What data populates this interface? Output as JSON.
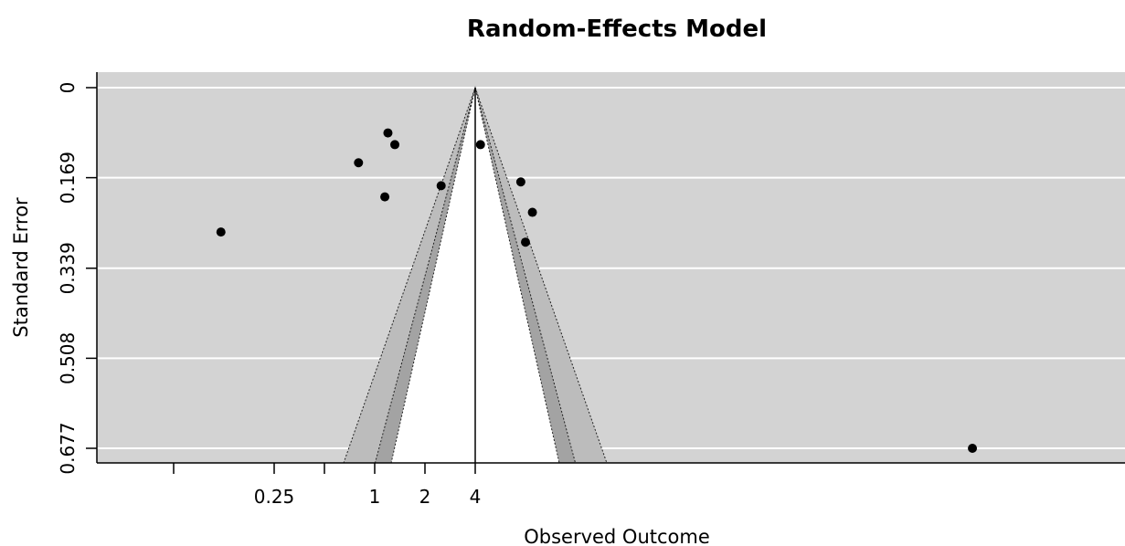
{
  "chart_data": {
    "type": "scatter",
    "title": "Random-Effects Model",
    "xlabel": "Observed Outcome",
    "ylabel": "Standard Error",
    "x_scale": "log",
    "x_ticks": [
      {
        "value": 0.0625,
        "label": ""
      },
      {
        "value": 0.25,
        "label": "0.25"
      },
      {
        "value": 0.5,
        "label": ""
      },
      {
        "value": 1,
        "label": "1"
      },
      {
        "value": 2,
        "label": "2"
      },
      {
        "value": 4,
        "label": "4"
      }
    ],
    "y_ticks": [
      {
        "value": 0,
        "label": "0"
      },
      {
        "value": 0.169,
        "label": "0.169"
      },
      {
        "value": 0.339,
        "label": "0.339"
      },
      {
        "value": 0.508,
        "label": "0.508"
      },
      {
        "value": 0.677,
        "label": "0.677"
      }
    ],
    "xlim": [
      0.0625,
      8000
    ],
    "ylim": [
      0,
      0.705
    ],
    "center_estimate": 4,
    "contour_levels": [
      0.9,
      0.95,
      0.99
    ],
    "points": [
      {
        "x": 1.2,
        "y": 0.085
      },
      {
        "x": 1.32,
        "y": 0.107
      },
      {
        "x": 0.8,
        "y": 0.141
      },
      {
        "x": 4.3,
        "y": 0.107
      },
      {
        "x": 2.5,
        "y": 0.184
      },
      {
        "x": 1.15,
        "y": 0.205
      },
      {
        "x": 7.5,
        "y": 0.177
      },
      {
        "x": 8.8,
        "y": 0.234
      },
      {
        "x": 8.0,
        "y": 0.29
      },
      {
        "x": 0.12,
        "y": 0.271
      },
      {
        "x": 3800,
        "y": 0.677
      }
    ],
    "grid": true,
    "colors": {
      "panel_background": "#d3d3d3",
      "gridline": "#ffffff",
      "funnel_inner": "#ffffff",
      "funnel_band_mid": "#a3a3a3",
      "funnel_band_outer": "#bcbcbc",
      "points": "#000000"
    }
  }
}
